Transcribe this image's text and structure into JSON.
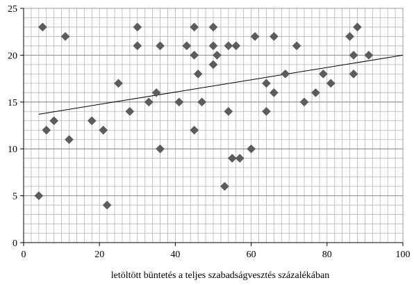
{
  "chart_data": {
    "type": "scatter",
    "title": "",
    "xlabel": "letöltött büntetés a teljes szabadságvesztés százalékában",
    "ylabel": "",
    "xlim": [
      0,
      100
    ],
    "ylim": [
      0,
      25
    ],
    "x_ticks": [
      0,
      20,
      40,
      60,
      80,
      100
    ],
    "y_ticks": [
      0,
      5,
      10,
      15,
      20,
      25
    ],
    "x_minor_step": 2,
    "y_minor_step": 1,
    "grid": true,
    "legend": "none",
    "marker": "diamond",
    "colors": {
      "marker": "#5c5c5c",
      "trendline": "#000000",
      "grid": "#b4b4b4",
      "axis": "#000000"
    },
    "trendline": {
      "x": [
        4,
        100
      ],
      "y": [
        13.7,
        20.0
      ]
    },
    "points": [
      {
        "x": 4,
        "y": 5
      },
      {
        "x": 5,
        "y": 23
      },
      {
        "x": 6,
        "y": 12
      },
      {
        "x": 8,
        "y": 13
      },
      {
        "x": 11,
        "y": 22
      },
      {
        "x": 12,
        "y": 11
      },
      {
        "x": 18,
        "y": 13
      },
      {
        "x": 21,
        "y": 12
      },
      {
        "x": 22,
        "y": 4
      },
      {
        "x": 25,
        "y": 17
      },
      {
        "x": 28,
        "y": 14
      },
      {
        "x": 30,
        "y": 23
      },
      {
        "x": 30,
        "y": 21
      },
      {
        "x": 33,
        "y": 15
      },
      {
        "x": 35,
        "y": 16
      },
      {
        "x": 36,
        "y": 21
      },
      {
        "x": 36,
        "y": 10
      },
      {
        "x": 41,
        "y": 15
      },
      {
        "x": 43,
        "y": 21
      },
      {
        "x": 45,
        "y": 23
      },
      {
        "x": 45,
        "y": 20
      },
      {
        "x": 45,
        "y": 12
      },
      {
        "x": 46,
        "y": 18
      },
      {
        "x": 47,
        "y": 15
      },
      {
        "x": 50,
        "y": 23
      },
      {
        "x": 50,
        "y": 21
      },
      {
        "x": 50,
        "y": 19
      },
      {
        "x": 51,
        "y": 20
      },
      {
        "x": 53,
        "y": 6
      },
      {
        "x": 54,
        "y": 14
      },
      {
        "x": 54,
        "y": 21
      },
      {
        "x": 56,
        "y": 21
      },
      {
        "x": 55,
        "y": 9
      },
      {
        "x": 57,
        "y": 9
      },
      {
        "x": 60,
        "y": 10
      },
      {
        "x": 61,
        "y": 22
      },
      {
        "x": 64,
        "y": 17
      },
      {
        "x": 64,
        "y": 14
      },
      {
        "x": 66,
        "y": 22
      },
      {
        "x": 66,
        "y": 16
      },
      {
        "x": 69,
        "y": 18
      },
      {
        "x": 72,
        "y": 21
      },
      {
        "x": 74,
        "y": 15
      },
      {
        "x": 77,
        "y": 16
      },
      {
        "x": 79,
        "y": 18
      },
      {
        "x": 81,
        "y": 17
      },
      {
        "x": 86,
        "y": 22
      },
      {
        "x": 87,
        "y": 20
      },
      {
        "x": 87,
        "y": 18
      },
      {
        "x": 88,
        "y": 23
      },
      {
        "x": 91,
        "y": 20
      }
    ]
  }
}
